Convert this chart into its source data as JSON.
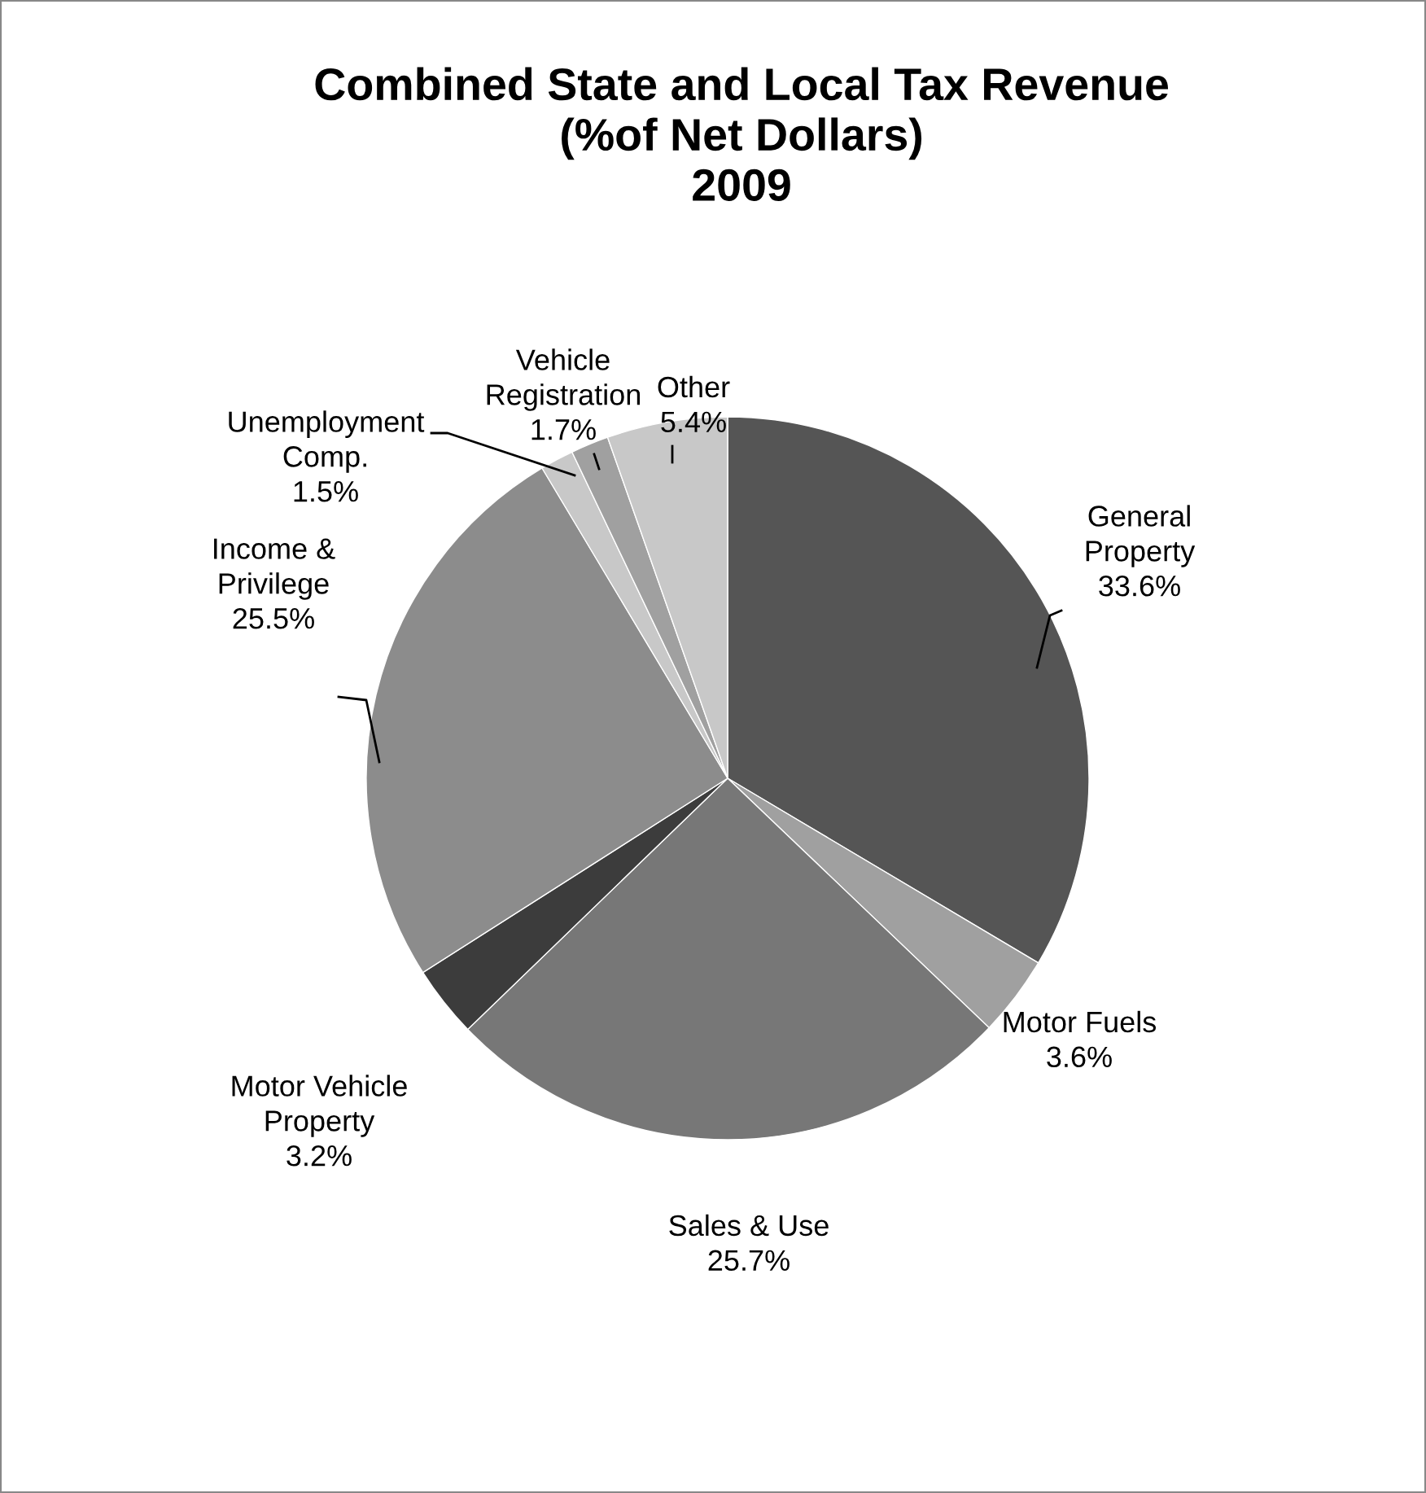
{
  "chart_data": {
    "type": "pie",
    "title": "Combined State and Local Tax Revenue\n(%of Net Dollars)\n2009",
    "categories": [
      "General\nProperty",
      "Motor Fuels",
      "Sales & Use",
      "Motor Vehicle\nProperty",
      "Income &\nPrivilege",
      "Unemployment\nComp.",
      "Vehicle\nRegistration",
      "Other"
    ],
    "values": [
      33.6,
      3.6,
      25.7,
      3.2,
      25.5,
      1.5,
      1.7,
      5.4
    ],
    "colors": [
      "#555555",
      "#a0a0a0",
      "#777777",
      "#3c3c3c",
      "#8c8c8c",
      "#c8c8c8",
      "#a0a0a0",
      "#c8c8c8"
    ],
    "value_labels": [
      "33.6%",
      "3.6%",
      "25.7%",
      "3.2%",
      "25.5%",
      "1.5%",
      "1.7%",
      "5.4%"
    ],
    "legend": false
  }
}
